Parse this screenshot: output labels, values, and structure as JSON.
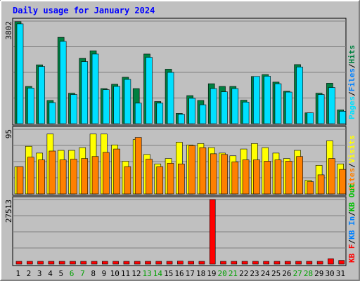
{
  "chart_data": {
    "type": "bar",
    "title": "Daily usage for January 2024",
    "x": [
      "1",
      "2",
      "3",
      "4",
      "5",
      "6",
      "7",
      "8",
      "9",
      "10",
      "11",
      "12",
      "13",
      "14",
      "15",
      "16",
      "17",
      "18",
      "19",
      "20",
      "21",
      "22",
      "23",
      "24",
      "25",
      "26",
      "27",
      "28",
      "29",
      "30",
      "31"
    ],
    "weekend_days": [
      "6",
      "7",
      "13",
      "14",
      "20",
      "21",
      "27",
      "28"
    ],
    "panels": [
      {
        "id": "hits-files-pages",
        "ymax_label": "3802",
        "ymax": 3802,
        "series": [
          {
            "name": "Hits",
            "color": "#008040",
            "values": [
              3780,
              1380,
              2180,
              860,
              3200,
              1130,
              2420,
              2700,
              1300,
              1460,
              1720,
              1300,
              2580,
              820,
              2020,
              380,
              1040,
              860,
              1480,
              1380,
              1380,
              870,
              1750,
              1820,
              1540,
              1200,
              2190,
              400,
              1130,
              1500,
              510
            ]
          },
          {
            "name": "Files",
            "color": "#0080ff",
            "values": [
              3700,
              1320,
              2120,
              780,
              3050,
              1080,
              2300,
              2580,
              1260,
              1380,
              1640,
              760,
              2460,
              760,
              1900,
              350,
              940,
              700,
              1300,
              1180,
              1300,
              800,
              1750,
              1760,
              1480,
              1170,
              2100,
              400,
              1080,
              1340,
              460
            ]
          },
          {
            "name": "Pages",
            "color": "#00e0ff",
            "values": [
              3700,
              1320,
              2120,
              780,
              3050,
              1080,
              2300,
              2580,
              1260,
              1380,
              1640,
              760,
              2460,
              760,
              1900,
              350,
              940,
              700,
              1300,
              1180,
              1300,
              800,
              1750,
              1760,
              1480,
              1170,
              2100,
              400,
              1080,
              1340,
              460
            ]
          }
        ]
      },
      {
        "id": "visits-sites",
        "ymax_label": "95",
        "ymax": 95,
        "series": [
          {
            "name": "Visits",
            "color": "#ffff00",
            "values": [
              40,
              70,
              60,
              88,
              64,
              64,
              68,
              88,
              88,
              72,
              48,
              80,
              58,
              44,
              52,
              76,
              72,
              74,
              68,
              60,
              56,
              66,
              74,
              68,
              60,
              52,
              64,
              20,
              42,
              78,
              44
            ]
          },
          {
            "name": "Sites",
            "color": "#ff8000",
            "values": [
              40,
              54,
              50,
              63,
              50,
              51,
              52,
              55,
              61,
              66,
              40,
              83,
              51,
              40,
              45,
              44,
              71,
              68,
              59,
              58,
              47,
              50,
              50,
              48,
              50,
              48,
              55,
              18,
              28,
              52,
              36
            ]
          }
        ]
      },
      {
        "id": "kbytes",
        "ymax_label": "27513",
        "ymax": 27513,
        "series": [
          {
            "name": "KB F",
            "color": "#ff0000",
            "values": [
              700,
              900,
              700,
              700,
              700,
              700,
              700,
              900,
              600,
              700,
              700,
              900,
              700,
              700,
              700,
              1300,
              700,
              900,
              27513,
              700,
              700,
              900,
              600,
              700,
              700,
              700,
              500,
              600,
              900,
              2300,
              1600
            ]
          },
          {
            "name": "KB In",
            "color": "#0080ff",
            "values": []
          },
          {
            "name": "KB Out",
            "color": "#00c000",
            "values": []
          }
        ]
      }
    ],
    "right_legends": {
      "top": [
        {
          "text": "Pages",
          "color": "#00e0ff"
        },
        {
          "text": "/",
          "color": "#000000"
        },
        {
          "text": "Files",
          "color": "#0080ff"
        },
        {
          "text": "/",
          "color": "#000000"
        },
        {
          "text": "Hits",
          "color": "#008040"
        }
      ],
      "middle": [
        {
          "text": "Sites",
          "color": "#ff8000"
        },
        {
          "text": "/",
          "color": "#000000"
        },
        {
          "text": "Visits",
          "color": "#ffff00"
        }
      ],
      "bottom": [
        {
          "text": "KB F",
          "color": "#ff0000"
        },
        {
          "text": "/",
          "color": "#000000"
        },
        {
          "text": "KB In",
          "color": "#0080ff"
        },
        {
          "text": "/",
          "color": "#000000"
        },
        {
          "text": "KB Out",
          "color": "#00c000"
        }
      ]
    },
    "colors": {
      "title": "#0000ff",
      "plot_bg": "#c0c0c0",
      "frame_bg": "#c0c0c0",
      "weekday_label": "#000000",
      "weekend_label": "#00a000"
    }
  }
}
